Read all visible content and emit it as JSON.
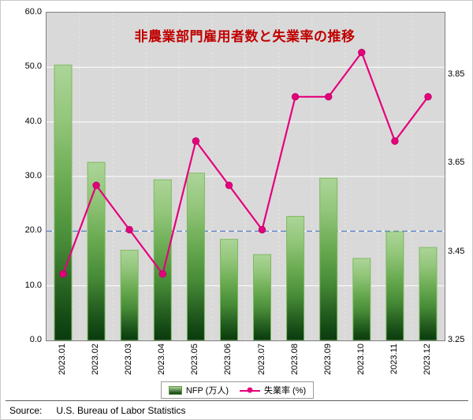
{
  "title": "非農業部門雇用者数と失業率の推移",
  "source": {
    "label": "Source:",
    "text": "U.S. Bureau of Labor Statistics"
  },
  "colors": {
    "title": "#C00000",
    "plot_bg": "#D9D9D9",
    "bar_gradient_top": "#ACD598",
    "bar_gradient_bottom": "#0B3A0F",
    "bar_border": "#7DB95C",
    "line": "#E5007D",
    "reference_line": "#4472C4",
    "grid": "#FFFFFF",
    "vertical_grid": "#EFE9DA"
  },
  "chart_data": {
    "type": "combo-bar-line",
    "title": "非農業部門雇用者数と失業率の推移",
    "categories": [
      "2023.01",
      "2023.02",
      "2023.03",
      "2023.04",
      "2023.05",
      "2023.06",
      "2023.07",
      "2023.08",
      "2023.09",
      "2023.10",
      "2023.11",
      "2023.12"
    ],
    "series": [
      {
        "name": "NFP (万人)",
        "type": "bar",
        "axis": "left",
        "values": [
          50.4,
          32.6,
          16.5,
          29.4,
          30.6,
          18.5,
          15.7,
          22.7,
          29.7,
          15.0,
          19.9,
          17.0
        ]
      },
      {
        "name": "失業率 (%)",
        "type": "line",
        "axis": "right",
        "values": [
          3.4,
          3.6,
          3.5,
          3.4,
          3.7,
          3.6,
          3.5,
          3.8,
          3.8,
          3.9,
          3.7,
          3.8
        ]
      }
    ],
    "left_axis": {
      "min": 0,
      "max": 60,
      "step": 10,
      "tick_labels": [
        "0.0",
        "10.0",
        "20.0",
        "30.0",
        "40.0",
        "50.0",
        "60.0"
      ]
    },
    "right_axis": {
      "min": 3.25,
      "max": 3.99,
      "ticks": [
        3.25,
        3.45,
        3.65,
        3.85
      ],
      "tick_labels": [
        "3.25",
        "3.45",
        "3.65",
        "3.85"
      ]
    },
    "reference_line": {
      "axis": "left",
      "value": 20
    },
    "grid": {
      "horizontal": true,
      "vertical_dashed": true
    },
    "legend_position": "bottom"
  }
}
